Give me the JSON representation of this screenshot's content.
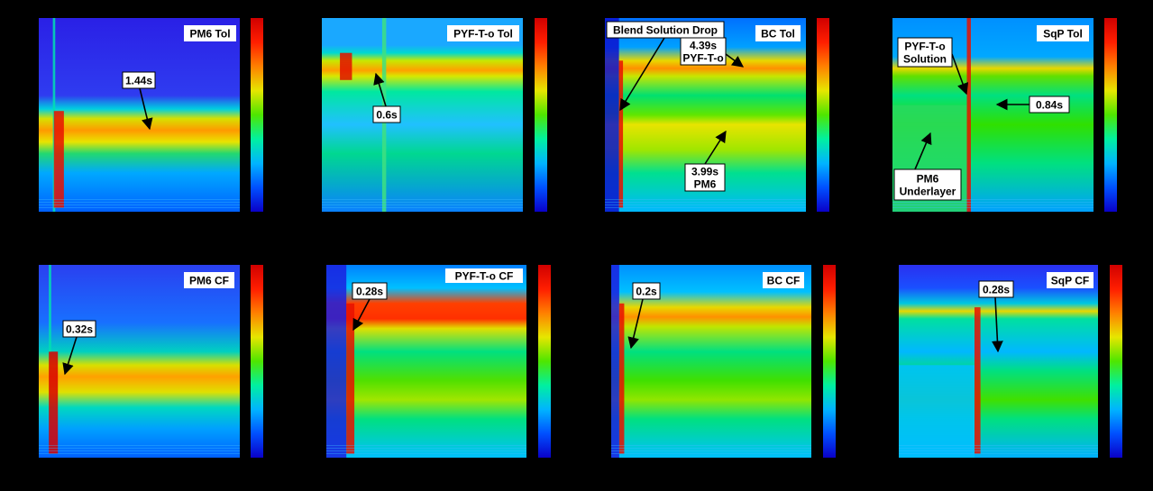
{
  "figure": {
    "colormap": "jet",
    "colormap_stops": [
      "#0a00c8",
      "#0050ff",
      "#00b4ff",
      "#00f0a0",
      "#4ee600",
      "#e6e600",
      "#ff8000",
      "#ff1e00",
      "#d00000"
    ]
  },
  "chart_data": [
    {
      "type": "heatmap",
      "title": "PM6 Tol",
      "colorbar": true,
      "annotations": [
        {
          "text": "1.44s"
        }
      ]
    },
    {
      "type": "heatmap",
      "title": "PYF-T-o Tol",
      "colorbar": true,
      "annotations": [
        {
          "text": "0.6s"
        }
      ]
    },
    {
      "type": "heatmap",
      "title": "BC Tol",
      "colorbar": true,
      "annotations": [
        {
          "text": "Blend Solution Drop"
        },
        {
          "text": "4.39s PYF-T-o",
          "lines": [
            "4.39s",
            "PYF-T-o"
          ]
        },
        {
          "text": "3.99s PM6",
          "lines": [
            "3.99s",
            "PM6"
          ]
        }
      ]
    },
    {
      "type": "heatmap",
      "title": "SqP Tol",
      "colorbar": true,
      "annotations": [
        {
          "text": "PYF-T-o Solution",
          "lines": [
            "PYF-T-o",
            "Solution"
          ]
        },
        {
          "text": "0.84s"
        },
        {
          "text": "PM6 Underlayer",
          "lines": [
            "PM6",
            "Underlayer"
          ]
        }
      ]
    },
    {
      "type": "heatmap",
      "title": "PM6 CF",
      "colorbar": true,
      "annotations": [
        {
          "text": "0.32s"
        }
      ]
    },
    {
      "type": "heatmap",
      "title": "PYF-T-o CF",
      "colorbar": true,
      "annotations": [
        {
          "text": "0.28s"
        }
      ]
    },
    {
      "type": "heatmap",
      "title": "BC CF",
      "colorbar": true,
      "annotations": [
        {
          "text": "0.2s"
        }
      ]
    },
    {
      "type": "heatmap",
      "title": "SqP CF",
      "colorbar": true,
      "annotations": [
        {
          "text": "0.28s"
        }
      ]
    }
  ]
}
